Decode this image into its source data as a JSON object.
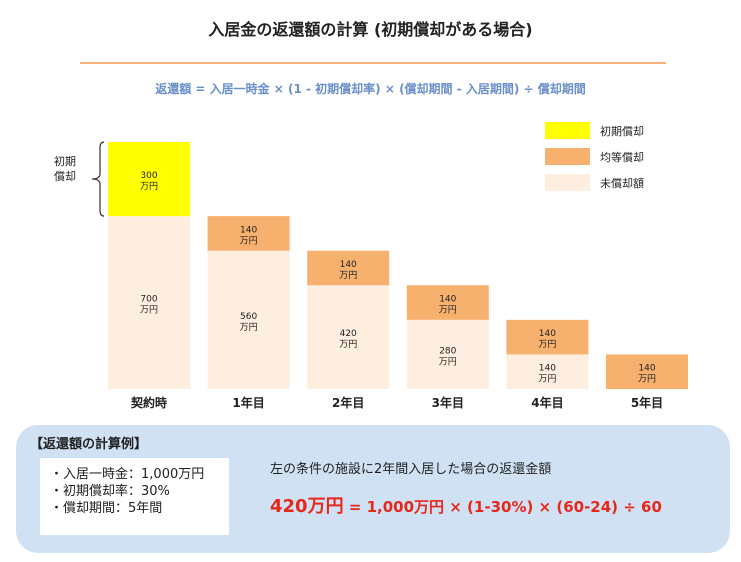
{
  "title": "入居金の返還額の計算 (初期償却がある場合)",
  "formula": "返還額 = 入居一時金 × (1 - 初期償却率) × (償却期間 - 入居期間) ÷ 償却期間",
  "colors": {
    "initial": "#ffff00",
    "uniform": "#f6b16e",
    "remaining": "#fdeedf",
    "formula": "#6b8fca",
    "accent": "#e8271b",
    "panel": "#cfe1f3",
    "divider": "#f6b477"
  },
  "legend": [
    {
      "label": "初期償却",
      "color": "#ffff00"
    },
    {
      "label": "均等償却",
      "color": "#f6b16e"
    },
    {
      "label": "未償却額",
      "color": "#fdeedf"
    }
  ],
  "brace_label": "初期償却",
  "chart_data": {
    "type": "bar",
    "stacked": true,
    "categories": [
      "契約時",
      "1年目",
      "2年目",
      "3年目",
      "4年目",
      "5年目"
    ],
    "series": [
      {
        "name": "未償却額",
        "color": "#fdeedf",
        "values": [
          700,
          560,
          420,
          280,
          140,
          0
        ]
      },
      {
        "name": "均等償却",
        "color": "#f6b16e",
        "values": [
          0,
          140,
          140,
          140,
          140,
          140
        ]
      },
      {
        "name": "初期償却",
        "color": "#ffff00",
        "values": [
          300,
          0,
          0,
          0,
          0,
          0
        ]
      }
    ],
    "unit": "万円",
    "ylim": [
      0,
      1000
    ],
    "grid": false,
    "legend_position": "top-right"
  },
  "example": {
    "title": "【返還額の計算例】",
    "conditions": [
      "入居一時金：1,000万円",
      "初期償却率：30%",
      "償却期間：5年間"
    ],
    "description": "左の条件の施設に2年間入居した場合の返還金額",
    "result": "420万円",
    "expression": " = 1,000万円 × (1-30%) × (60-24) ÷ 60"
  }
}
